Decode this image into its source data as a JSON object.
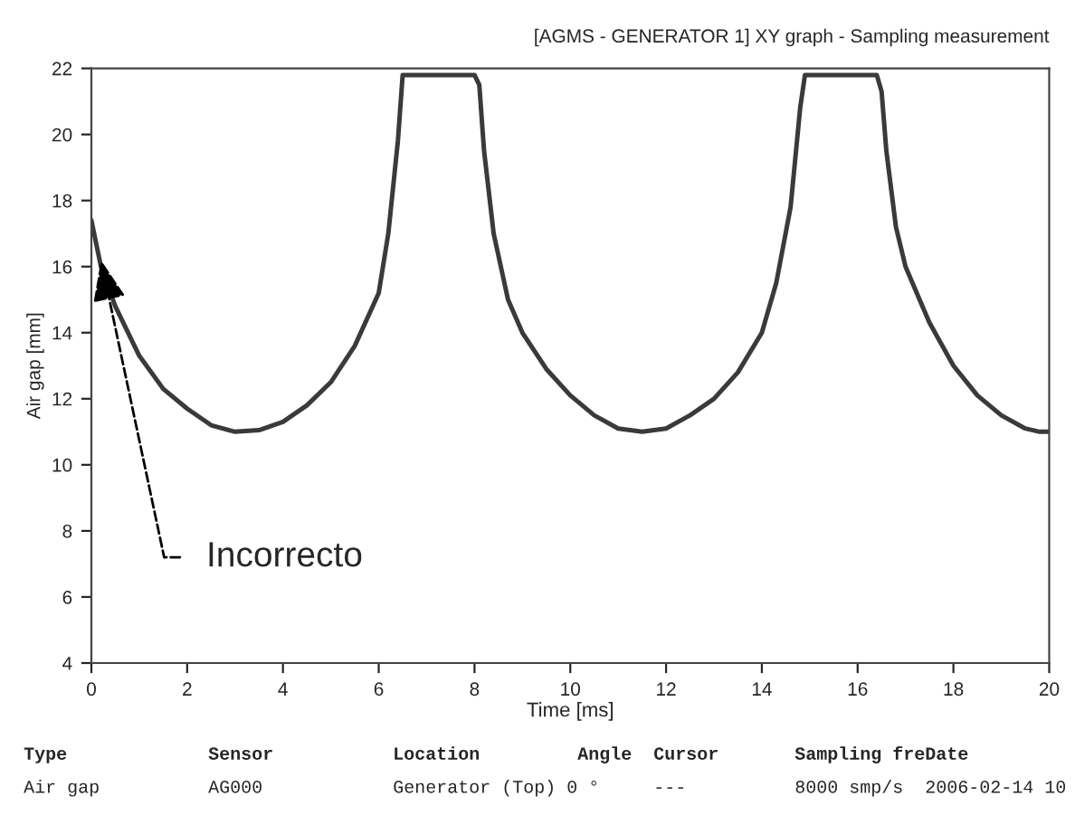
{
  "chart_data": {
    "type": "line",
    "title": "[AGMS - GENERATOR 1] XY graph - Sampling measurement",
    "xlabel": "Time [ms]",
    "ylabel": "Air gap [mm]",
    "x": [
      0,
      0.2,
      0.5,
      1,
      1.5,
      2,
      2.5,
      3,
      3.5,
      4,
      4.5,
      5,
      5.5,
      6,
      6.2,
      6.4,
      6.5,
      8.0,
      8.1,
      8.2,
      8.4,
      8.7,
      9,
      9.5,
      10,
      10.5,
      11,
      11.5,
      12,
      12.5,
      13,
      13.5,
      14,
      14.3,
      14.6,
      14.8,
      14.9,
      16.4,
      16.5,
      16.6,
      16.8,
      17,
      17.5,
      18,
      18.5,
      19,
      19.5,
      19.8,
      20
    ],
    "series": [
      {
        "color": "#3a3a3a",
        "values": [
          17.4,
          16.0,
          14.8,
          13.3,
          12.3,
          11.7,
          11.2,
          11.0,
          11.05,
          11.3,
          11.8,
          12.5,
          13.6,
          15.2,
          17.0,
          19.8,
          21.8,
          21.8,
          21.5,
          19.5,
          17.0,
          15.0,
          14.0,
          12.9,
          12.1,
          11.5,
          11.1,
          11.0,
          11.1,
          11.5,
          12.0,
          12.8,
          14.0,
          15.5,
          17.8,
          20.8,
          21.8,
          21.8,
          21.3,
          19.5,
          17.2,
          16.0,
          14.3,
          13.0,
          12.1,
          11.5,
          11.1,
          11.0,
          11.0
        ]
      }
    ],
    "xlim": [
      0,
      20
    ],
    "xticks": [
      0,
      2,
      4,
      6,
      8,
      10,
      12,
      14,
      16,
      18,
      20
    ],
    "ylim": [
      4,
      22
    ],
    "yticks": [
      4,
      6,
      8,
      10,
      12,
      14,
      16,
      18,
      20,
      22
    ],
    "grid": false,
    "legend": false,
    "marker": "none",
    "line_style": "solid",
    "annotations": [
      {
        "text": "Incorrecto",
        "x": 0.2,
        "y": 16.2
      },
      "Type             Sensor           Location         Angle  Cursor       Sampling freDate",
      "Air gap          AG000            Generator (Top) 0 °     ---          8000 smp/s  2006-02-14 10"
    ]
  }
}
